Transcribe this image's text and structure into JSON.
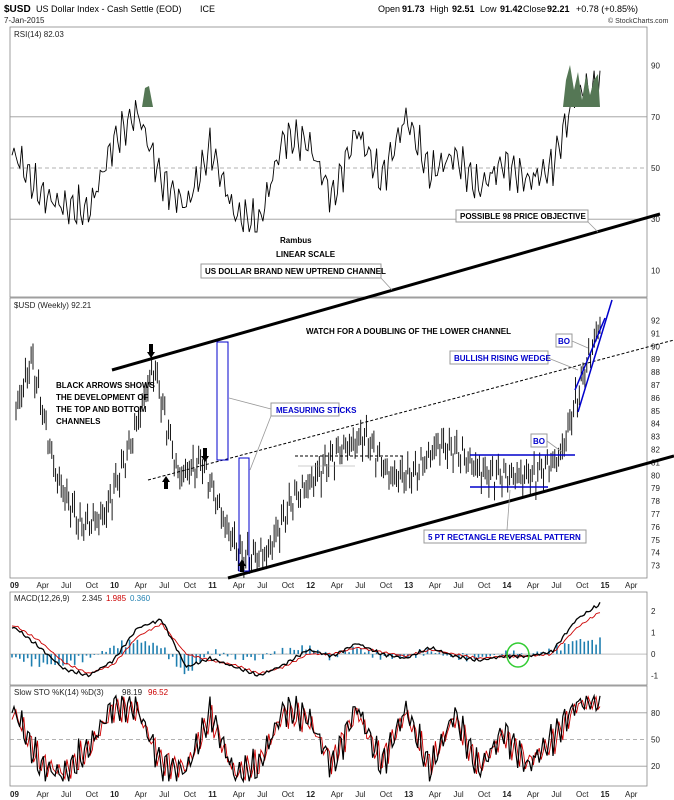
{
  "header": {
    "symbol": "$USD",
    "name": "US Dollar Index - Cash Settle (EOD)",
    "exchange": "ICE",
    "date": "7-Jan-2015",
    "open_label": "Open",
    "open": "91.73",
    "high_label": "High",
    "high": "92.51",
    "low_label": "Low",
    "low": "91.42",
    "close_label": "Close",
    "close": "92.21",
    "change": "+0.78 (+0.85%)",
    "credit": "© StockCharts.com"
  },
  "colors": {
    "price": "#000000",
    "macd_signal": "#cc0000",
    "histogram": "#1f7fb0",
    "rsi_fill": "#557755",
    "channel_blue": "#0000cc",
    "highlight_circle": "#33cc33"
  },
  "chart_data": [
    {
      "type": "line",
      "panel": "rsi",
      "legend": "RSI(14) 82.03",
      "ylim": [
        0,
        100
      ],
      "yticks": [
        "90",
        "70",
        "50",
        "30",
        "10"
      ],
      "reference_lines": [
        70,
        50,
        30
      ],
      "x": [
        "2009-01",
        "2009-04",
        "2009-07",
        "2009-10",
        "2010-01",
        "2010-04",
        "2010-07",
        "2010-10",
        "2011-01",
        "2011-04",
        "2011-07",
        "2011-10",
        "2012-01",
        "2012-04",
        "2012-07",
        "2012-10",
        "2013-01",
        "2013-04",
        "2013-07",
        "2013-10",
        "2014-01",
        "2014-04",
        "2014-07",
        "2014-10",
        "2015-01"
      ],
      "values": [
        55,
        40,
        35,
        33,
        60,
        72,
        45,
        35,
        58,
        32,
        28,
        62,
        60,
        38,
        65,
        45,
        70,
        48,
        55,
        42,
        52,
        45,
        50,
        80,
        82
      ]
    },
    {
      "type": "line",
      "panel": "price",
      "legend": "$USD (Weekly) 92.21",
      "ylim": [
        72.5,
        92.5
      ],
      "yticks": [
        "92",
        "91",
        "90",
        "89",
        "88",
        "87",
        "86",
        "85",
        "84",
        "83",
        "82",
        "81",
        "80",
        "79",
        "78",
        "77",
        "76",
        "75",
        "74",
        "73"
      ],
      "x": [
        "2009-01",
        "2009-03",
        "2009-06",
        "2009-09",
        "2009-12",
        "2010-03",
        "2010-06",
        "2010-09",
        "2010-12",
        "2011-03",
        "2011-05",
        "2011-08",
        "2011-11",
        "2012-02",
        "2012-05",
        "2012-08",
        "2012-11",
        "2013-02",
        "2013-05",
        "2013-08",
        "2013-11",
        "2014-02",
        "2014-05",
        "2014-08",
        "2014-11",
        "2015-01"
      ],
      "values": [
        85,
        89,
        80,
        76,
        77,
        82,
        88.5,
        80,
        81,
        76,
        73.5,
        74,
        78,
        80,
        82,
        83,
        80,
        80,
        82.5,
        81.5,
        80,
        80,
        80,
        81.5,
        88,
        92.2
      ],
      "annotations": [
        "POSSIBLE 98 PRICE OBJECTIVE",
        "Rambus",
        "LINEAR SCALE",
        "US DOLLAR BRAND NEW UPTREND CHANNEL",
        "WATCH FOR A DOUBLING OF THE LOWER CHANNEL",
        "BLACK ARROWS SHOWS",
        "THE DEVELOPMENT OF",
        "THE TOP AND BOTTOM",
        "CHANNELS",
        "MEASURING STICKS",
        "BULLISH RISING WEDGE",
        "BO",
        "BO",
        "5 PT RECTANGLE REVERSAL PATTERN"
      ]
    },
    {
      "type": "line",
      "panel": "macd",
      "legend_name": "MACD(12,26,9)",
      "legend_values": [
        "2.345",
        "1.985",
        "0.360"
      ],
      "ylim": [
        -1.2,
        2.5
      ],
      "yticks": [
        "2",
        "1",
        "0",
        "-1"
      ],
      "x": [
        "2009-01",
        "2009-04",
        "2009-07",
        "2009-10",
        "2010-01",
        "2010-04",
        "2010-07",
        "2010-10",
        "2011-01",
        "2011-04",
        "2011-07",
        "2011-10",
        "2012-01",
        "2012-04",
        "2012-07",
        "2012-10",
        "2013-01",
        "2013-04",
        "2013-07",
        "2013-10",
        "2014-01",
        "2014-04",
        "2014-07",
        "2014-10",
        "2015-01"
      ],
      "macd": [
        1.2,
        0.3,
        -0.7,
        -1.0,
        -0.3,
        1.2,
        1.6,
        -0.6,
        -0.2,
        -0.6,
        -1.0,
        -0.5,
        0.2,
        -0.1,
        0.5,
        0.0,
        -0.2,
        0.3,
        -0.1,
        -0.3,
        -0.1,
        -0.1,
        0.1,
        1.6,
        2.35
      ],
      "signal": [
        1.3,
        0.6,
        -0.4,
        -0.9,
        -0.5,
        0.8,
        1.4,
        0.0,
        -0.3,
        -0.5,
        -0.9,
        -0.6,
        0.0,
        0.0,
        0.3,
        0.1,
        -0.1,
        0.2,
        0.0,
        -0.2,
        -0.1,
        -0.1,
        0.0,
        1.2,
        1.98
      ]
    },
    {
      "type": "line",
      "panel": "stochastic",
      "legend_name": "Slow STO %K(14) %D(3)",
      "legend_values": [
        "98.19",
        "96.52"
      ],
      "ylim": [
        0,
        100
      ],
      "yticks": [
        "80",
        "50",
        "20"
      ],
      "reference_lines": [
        80,
        50,
        20
      ],
      "x": [
        "2009-01",
        "2009-04",
        "2009-07",
        "2009-10",
        "2010-01",
        "2010-04",
        "2010-07",
        "2010-10",
        "2011-01",
        "2011-04",
        "2011-07",
        "2011-10",
        "2012-01",
        "2012-04",
        "2012-07",
        "2012-10",
        "2013-01",
        "2013-04",
        "2013-07",
        "2013-10",
        "2014-01",
        "2014-04",
        "2014-07",
        "2014-10",
        "2015-01"
      ],
      "k": [
        80,
        20,
        10,
        40,
        90,
        85,
        20,
        15,
        80,
        10,
        20,
        85,
        75,
        20,
        88,
        20,
        85,
        15,
        80,
        15,
        60,
        20,
        50,
        90,
        98.19
      ],
      "d": [
        78,
        25,
        12,
        38,
        85,
        82,
        25,
        18,
        75,
        12,
        22,
        80,
        72,
        25,
        82,
        25,
        80,
        20,
        75,
        18,
        55,
        25,
        45,
        88,
        96.52
      ]
    }
  ],
  "x_axis_labels": [
    "09",
    "Apr",
    "Jul",
    "Oct",
    "10",
    "Apr",
    "Jul",
    "Oct",
    "11",
    "Apr",
    "Jul",
    "Oct",
    "12",
    "Apr",
    "Jul",
    "Oct",
    "13",
    "Apr",
    "Jul",
    "Oct",
    "14",
    "Apr",
    "Jul",
    "Oct",
    "15",
    "Apr"
  ]
}
